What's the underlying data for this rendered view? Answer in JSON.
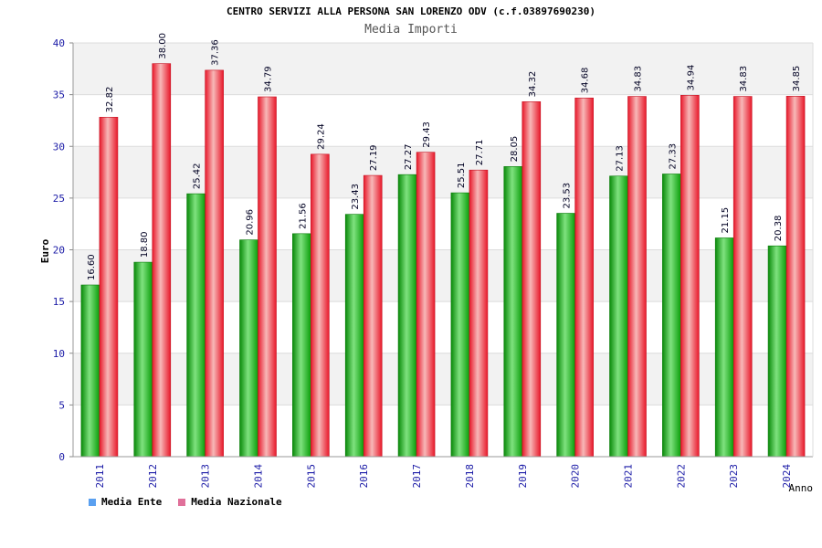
{
  "title": "CENTRO SERVIZI ALLA PERSONA SAN LORENZO ODV (c.f.03897690230)",
  "subtitle": "Media Importi",
  "legend": {
    "ente": "Media Ente",
    "nazionale": "Media Nazionale"
  },
  "colors": {
    "ente": "#0a9e0a",
    "nazionale": "#e8182a",
    "legend_ente": "#5aa0f0",
    "legend_nazionale": "#e0709a",
    "band": "#f2f2f2",
    "axis_text": "#1a1aa6"
  },
  "chart_data": {
    "type": "bar",
    "xlabel": "Anno",
    "ylabel": "Euro",
    "ylim": [
      0,
      40
    ],
    "yticks": [
      0,
      5,
      10,
      15,
      20,
      25,
      30,
      35,
      40
    ],
    "categories": [
      "2011",
      "2012",
      "2013",
      "2014",
      "2015",
      "2016",
      "2017",
      "2018",
      "2019",
      "2020",
      "2021",
      "2022",
      "2023",
      "2024"
    ],
    "series": [
      {
        "name": "Media Ente",
        "values": [
          16.6,
          18.8,
          25.42,
          20.96,
          21.56,
          23.43,
          27.27,
          25.51,
          28.05,
          23.53,
          27.13,
          27.33,
          21.15,
          20.38
        ],
        "labels": [
          "16.60",
          "18.80",
          "25.42",
          "20.96",
          "21.56",
          "23.43",
          "27.27",
          "25.51",
          "28.05",
          "23.53",
          "27.13",
          "27.33",
          "21.15",
          "20.38"
        ]
      },
      {
        "name": "Media Nazionale",
        "values": [
          32.82,
          38.0,
          37.36,
          34.79,
          29.24,
          27.19,
          29.43,
          27.71,
          34.32,
          34.68,
          34.83,
          34.94,
          34.83,
          34.85
        ],
        "labels": [
          "32.82",
          "38.00",
          "37.36",
          "34.79",
          "29.24",
          "27.19",
          "29.43",
          "27.71",
          "34.32",
          "34.68",
          "34.83",
          "34.94",
          "34.83",
          "34.85"
        ]
      }
    ],
    "grid": true,
    "legend_position": "bottom-left"
  }
}
